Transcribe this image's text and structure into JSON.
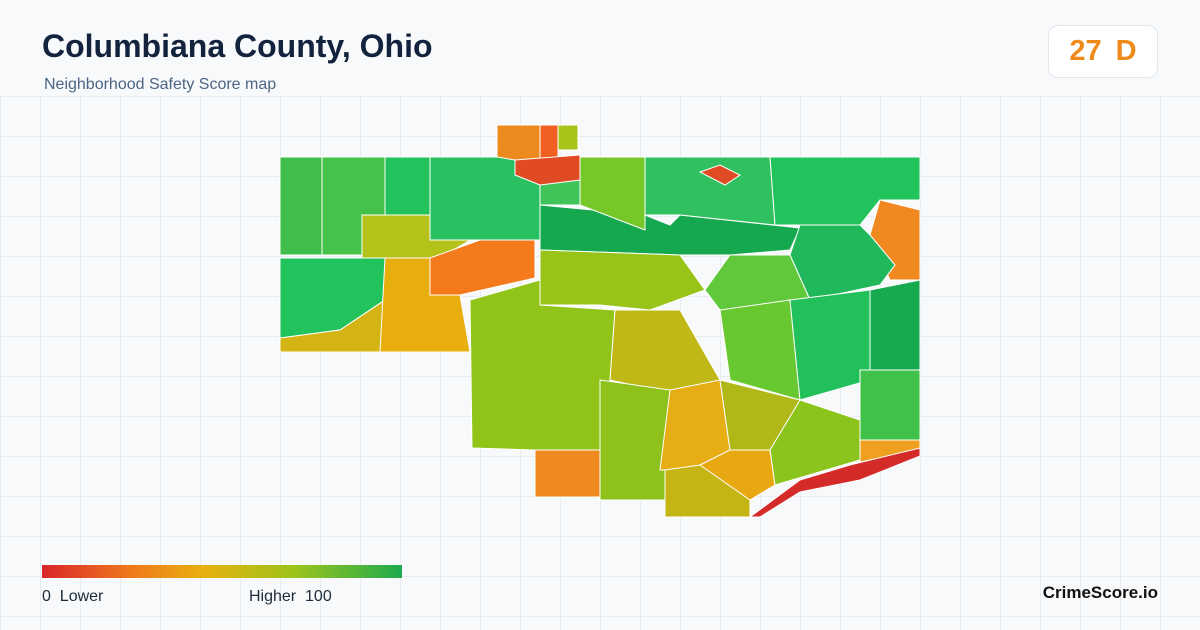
{
  "header": {
    "title": "Columbiana County, Ohio",
    "subtitle": "Neighborhood Safety Score map"
  },
  "score": {
    "value": 27,
    "grade": "D"
  },
  "legend": {
    "min": 0,
    "min_label": "Lower",
    "max_label": "Higher",
    "max": 100
  },
  "footer": {
    "brand": "CrimeScore.io"
  }
}
